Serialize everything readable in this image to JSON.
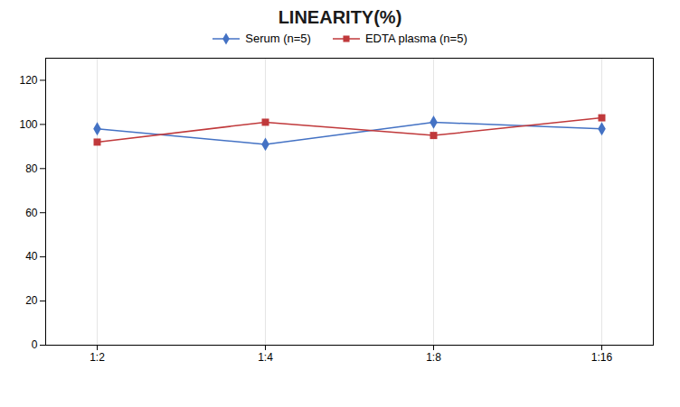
{
  "chart_data": {
    "type": "line",
    "title": "LINEARITY(%)",
    "categories": [
      "1:2",
      "1:4",
      "1:8",
      "1:16"
    ],
    "series": [
      {
        "name": "Serum (n=5)",
        "color": "#4472C4",
        "marker": "diamond",
        "values": [
          98,
          91,
          101,
          98
        ]
      },
      {
        "name": "EDTA plasma (n=5)",
        "color": "#C0393B",
        "marker": "square",
        "values": [
          92,
          101,
          95,
          103
        ]
      }
    ],
    "ylim": [
      0,
      130
    ],
    "yticks": [
      0,
      20,
      40,
      60,
      80,
      100,
      120
    ],
    "grid": "x",
    "legend": "top"
  }
}
